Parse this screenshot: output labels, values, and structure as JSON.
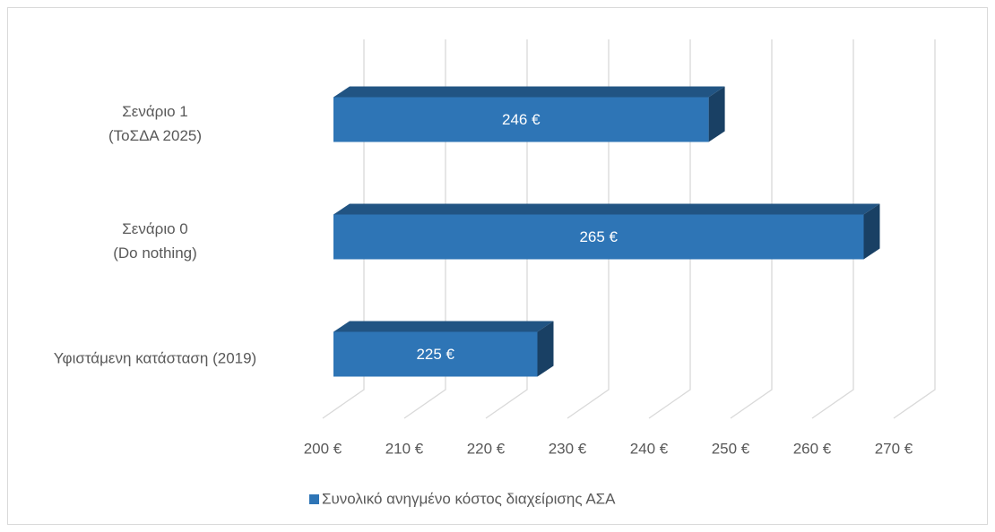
{
  "chart_data": {
    "type": "bar3d-horizontal",
    "categories": [
      "Υφιστάμενη κατάσταση (2019)",
      "Σενάριο 0\n(Do nothing)",
      "Σενάριο 1\n(ΤοΣΔΑ 2025)"
    ],
    "series": [
      {
        "name": "Συνολικό ανηγμένο κόστος διαχείρισης ΑΣΑ",
        "color": "#2e75b6",
        "values": [
          225,
          265,
          246
        ],
        "value_labels": [
          "225 €",
          "265 €",
          "246 €"
        ]
      }
    ],
    "xlim": [
      200,
      270
    ],
    "xticks": [
      {
        "value": 200,
        "label": "200 €"
      },
      {
        "value": 210,
        "label": "210 €"
      },
      {
        "value": 220,
        "label": "220 €"
      },
      {
        "value": 230,
        "label": "230 €"
      },
      {
        "value": 240,
        "label": "240 €"
      },
      {
        "value": 250,
        "label": "250 €"
      },
      {
        "value": 260,
        "label": "260 €"
      },
      {
        "value": 270,
        "label": "270 €"
      }
    ],
    "grid": true,
    "legend": "bottom"
  }
}
